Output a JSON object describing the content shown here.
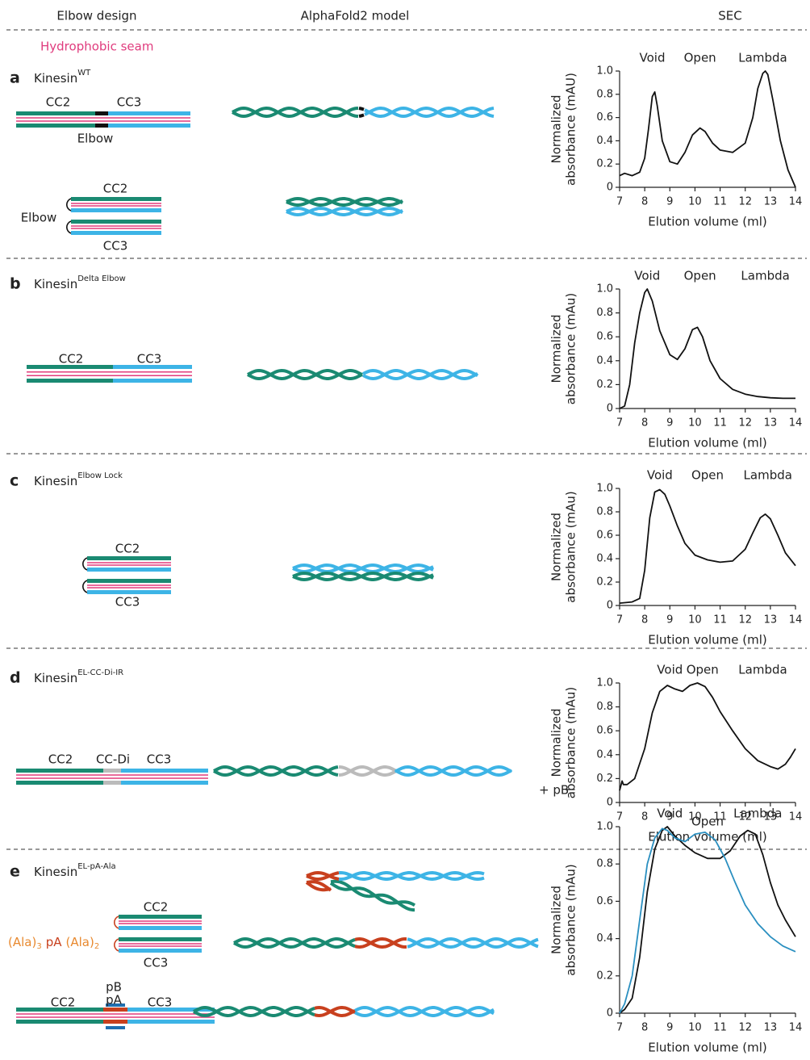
{
  "header": {
    "columns": [
      "Elbow design",
      "AlphaFold2 model",
      "SEC"
    ],
    "legend": "Hydrophobic seam"
  },
  "panels": [
    {
      "letter": "a",
      "name": "Kinesin",
      "superscript": "WT",
      "labels": [
        "CC2",
        "CC3",
        "Elbow",
        "CC2",
        "CC3",
        "Elbow"
      ]
    },
    {
      "letter": "b",
      "name": "Kinesin",
      "superscript": "Delta Elbow",
      "labels": [
        "CC2",
        "CC3"
      ]
    },
    {
      "letter": "c",
      "name": "Kinesin",
      "superscript": "Elbow Lock",
      "labels": [
        "CC2",
        "CC3"
      ]
    },
    {
      "letter": "d",
      "name": "Kinesin",
      "superscript": "EL-CC-Di-IR",
      "labels": [
        "CC2",
        "CC-Di",
        "CC3"
      ]
    },
    {
      "letter": "e",
      "name": "Kinesin",
      "superscript": "EL-pA-Ala",
      "labels": [
        "CC2",
        "CC3",
        "CC2",
        "pB",
        "pA",
        "CC3"
      ],
      "linker": [
        "(Ala)",
        "3",
        "pA",
        "(Ala)",
        "2"
      ]
    }
  ],
  "chart_data": [
    {
      "type": "line",
      "y_label": [
        "Normalized",
        "absorbance (mAU)"
      ],
      "x_label": "Elution volume (ml)",
      "annotations": [
        {
          "text": "Void",
          "x": 8.3
        },
        {
          "text": "Open",
          "x": 10.2
        },
        {
          "text": "Lambda",
          "x": 12.7
        }
      ],
      "xlim": [
        7,
        14
      ],
      "xticks": [
        7,
        8,
        9,
        10,
        11,
        12,
        13,
        14
      ],
      "ylim": [
        0,
        1
      ],
      "yticks": [
        0,
        0.2,
        0.4,
        0.6,
        0.8,
        {
          "value": 1,
          "label": "1.0"
        }
      ],
      "series": [
        {
          "color": "#111111",
          "x": [
            7,
            7.2,
            7.5,
            7.8,
            8.0,
            8.15,
            8.3,
            8.4,
            8.5,
            8.7,
            9.0,
            9.3,
            9.6,
            9.9,
            10.2,
            10.4,
            10.7,
            11.0,
            11.5,
            12.0,
            12.3,
            12.5,
            12.7,
            12.8,
            12.9,
            13.1,
            13.4,
            13.7,
            14.0
          ],
          "values": [
            0.1,
            0.12,
            0.1,
            0.13,
            0.25,
            0.5,
            0.78,
            0.82,
            0.7,
            0.4,
            0.22,
            0.2,
            0.3,
            0.45,
            0.51,
            0.48,
            0.38,
            0.32,
            0.3,
            0.38,
            0.6,
            0.85,
            0.98,
            1.0,
            0.97,
            0.75,
            0.4,
            0.15,
            0.0
          ]
        }
      ]
    },
    {
      "type": "line",
      "y_label": [
        "Normalized",
        "absorbance (mAu)"
      ],
      "x_label": "Elution volume (ml)",
      "annotations": [
        {
          "text": "Void",
          "x": 8.1
        },
        {
          "text": "Open",
          "x": 10.2
        },
        {
          "text": "Lambda",
          "x": 12.8
        }
      ],
      "xlim": [
        7,
        14
      ],
      "xticks": [
        7,
        8,
        9,
        10,
        11,
        12,
        13,
        14
      ],
      "ylim": [
        0,
        1
      ],
      "yticks": [
        0,
        0.2,
        0.4,
        0.6,
        0.8,
        {
          "value": 1,
          "label": "1.0"
        }
      ],
      "series": [
        {
          "color": "#111111",
          "x": [
            7,
            7.2,
            7.4,
            7.6,
            7.8,
            8.0,
            8.1,
            8.3,
            8.6,
            9.0,
            9.3,
            9.6,
            9.9,
            10.1,
            10.3,
            10.6,
            11.0,
            11.5,
            12.0,
            12.5,
            13.0,
            13.5,
            14.0
          ],
          "values": [
            0,
            0.02,
            0.2,
            0.55,
            0.8,
            0.97,
            1.0,
            0.9,
            0.65,
            0.45,
            0.41,
            0.5,
            0.66,
            0.68,
            0.6,
            0.4,
            0.25,
            0.16,
            0.12,
            0.1,
            0.09,
            0.085,
            0.085
          ]
        }
      ]
    },
    {
      "type": "line",
      "y_label": [
        "Normalized",
        "absorbance (mAu)"
      ],
      "x_label": "Elution volume (ml)",
      "annotations": [
        {
          "text": "Void",
          "x": 8.6
        },
        {
          "text": "Open",
          "x": 10.5
        },
        {
          "text": "Lambda",
          "x": 12.9
        }
      ],
      "xlim": [
        7,
        14
      ],
      "xticks": [
        7,
        8,
        9,
        10,
        11,
        12,
        13,
        14
      ],
      "ylim": [
        0,
        1
      ],
      "yticks": [
        0,
        0.2,
        0.4,
        0.6,
        0.8,
        {
          "value": 1,
          "label": "1.0"
        }
      ],
      "series": [
        {
          "color": "#111111",
          "x": [
            7,
            7.5,
            7.8,
            8.0,
            8.2,
            8.4,
            8.6,
            8.8,
            9.0,
            9.3,
            9.6,
            10.0,
            10.5,
            11.0,
            11.5,
            12.0,
            12.3,
            12.6,
            12.8,
            13.0,
            13.3,
            13.6,
            14.0
          ],
          "values": [
            0.02,
            0.03,
            0.06,
            0.3,
            0.75,
            0.97,
            0.99,
            0.95,
            0.85,
            0.68,
            0.53,
            0.43,
            0.39,
            0.37,
            0.38,
            0.48,
            0.62,
            0.75,
            0.78,
            0.74,
            0.6,
            0.45,
            0.34
          ]
        }
      ]
    },
    {
      "type": "line",
      "y_label": [
        "Normalized",
        "absorbance (mAu)"
      ],
      "x_label": "Elution volume (ml)",
      "annotations": [
        {
          "text": "Void",
          "x": 9.0
        },
        {
          "text": "Open",
          "x": 10.3
        },
        {
          "text": "Lambda",
          "x": 12.7
        }
      ],
      "xlim": [
        7,
        14
      ],
      "xticks": [
        7,
        8,
        9,
        10,
        11,
        12,
        13,
        14
      ],
      "ylim": [
        0,
        1
      ],
      "yticks": [
        0,
        0.2,
        0.4,
        0.6,
        0.8,
        {
          "value": 1,
          "label": "1.0"
        }
      ],
      "series": [
        {
          "color": "#111111",
          "x": [
            7,
            7.1,
            7.15,
            7.3,
            7.6,
            8.0,
            8.3,
            8.6,
            8.9,
            9.2,
            9.5,
            9.8,
            10.1,
            10.4,
            10.7,
            11.0,
            11.5,
            12.0,
            12.5,
            13.0,
            13.3,
            13.6,
            13.8,
            14.0
          ],
          "values": [
            0.1,
            0.18,
            0.15,
            0.15,
            0.2,
            0.45,
            0.75,
            0.93,
            0.98,
            0.95,
            0.93,
            0.98,
            1.0,
            0.97,
            0.88,
            0.76,
            0.6,
            0.45,
            0.35,
            0.3,
            0.28,
            0.32,
            0.38,
            0.45
          ]
        }
      ]
    },
    {
      "type": "line",
      "y_label": [
        "Normalized",
        "absorbance (mAu)"
      ],
      "x_label": "Elution volume (ml)",
      "annotations": [
        {
          "text": "Void",
          "x": 9.0
        },
        {
          "text": "Open",
          "x": 10.5
        },
        {
          "text": "Lambda",
          "x": 12.5
        }
      ],
      "xlim": [
        7,
        14
      ],
      "xticks": [
        7,
        8,
        9,
        10,
        11,
        12,
        13,
        14
      ],
      "ylim": [
        0,
        1
      ],
      "yticks": [
        0,
        0.2,
        0.4,
        0.6,
        0.8,
        {
          "value": 1,
          "label": "1.0"
        }
      ],
      "series": [
        {
          "color": "#111111",
          "x": [
            7,
            7.2,
            7.5,
            7.8,
            8.1,
            8.4,
            8.7,
            8.9,
            9.2,
            9.6,
            10.0,
            10.5,
            11.0,
            11.4,
            11.8,
            12.1,
            12.4,
            12.7,
            13.0,
            13.3,
            13.6,
            14.0
          ],
          "values": [
            0,
            0.02,
            0.08,
            0.3,
            0.65,
            0.88,
            0.98,
            1.0,
            0.95,
            0.9,
            0.86,
            0.83,
            0.83,
            0.87,
            0.95,
            0.98,
            0.96,
            0.85,
            0.7,
            0.58,
            0.5,
            0.41
          ]
        },
        {
          "name": "+ pB",
          "color": "#2a8fc0",
          "x": [
            7,
            7.2,
            7.5,
            7.8,
            8.1,
            8.4,
            8.7,
            8.9,
            9.2,
            9.6,
            10.0,
            10.4,
            10.8,
            11.2,
            11.6,
            12.0,
            12.5,
            13.0,
            13.5,
            14.0
          ],
          "values": [
            0,
            0.05,
            0.2,
            0.5,
            0.8,
            0.94,
            0.99,
            0.98,
            0.94,
            0.92,
            0.96,
            0.97,
            0.93,
            0.83,
            0.7,
            0.58,
            0.48,
            0.41,
            0.36,
            0.33
          ]
        }
      ]
    }
  ]
}
